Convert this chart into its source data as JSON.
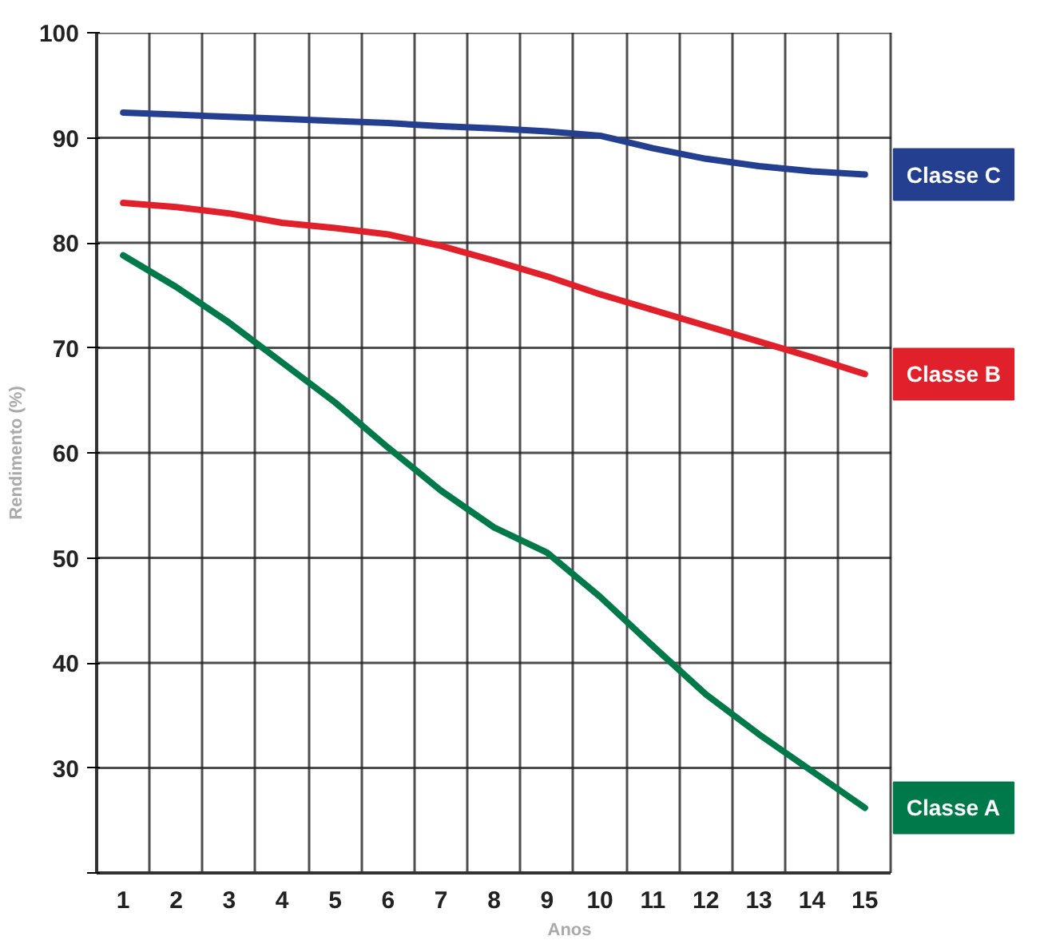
{
  "chart_data": {
    "type": "line",
    "xlabel": "Anos",
    "ylabel": "Rendimento (%)",
    "x": [
      1,
      2,
      3,
      4,
      5,
      6,
      7,
      8,
      9,
      10,
      11,
      12,
      13,
      14,
      15
    ],
    "series": [
      {
        "name": "Classe C",
        "color": "#243f8f",
        "values": [
          92.4,
          92.2,
          92.0,
          91.8,
          91.6,
          91.4,
          91.1,
          90.9,
          90.6,
          90.2,
          89.0,
          88.0,
          87.3,
          86.8,
          86.5
        ]
      },
      {
        "name": "Classe B",
        "color": "#e0202b",
        "values": [
          83.8,
          83.4,
          82.8,
          81.9,
          81.4,
          80.8,
          79.7,
          78.3,
          76.8,
          75.1,
          73.6,
          72.1,
          70.6,
          69.1,
          67.5
        ]
      },
      {
        "name": "Classe A",
        "color": "#00794a",
        "values": [
          78.8,
          75.8,
          72.4,
          68.6,
          64.8,
          60.5,
          56.4,
          52.9,
          50.5,
          46.3,
          41.6,
          37.0,
          33.2,
          29.7,
          26.2
        ]
      }
    ],
    "xlim": [
      0.5,
      15.5
    ],
    "ylim": [
      20,
      100
    ],
    "xticks": [
      1,
      2,
      3,
      4,
      5,
      6,
      7,
      8,
      9,
      10,
      11,
      12,
      13,
      14,
      15
    ],
    "yticks": [
      {
        "value": 20,
        "label": null
      },
      30,
      40,
      50,
      60,
      70,
      80,
      90,
      100
    ],
    "grid": true,
    "marker": "none",
    "line_style": "solid"
  }
}
